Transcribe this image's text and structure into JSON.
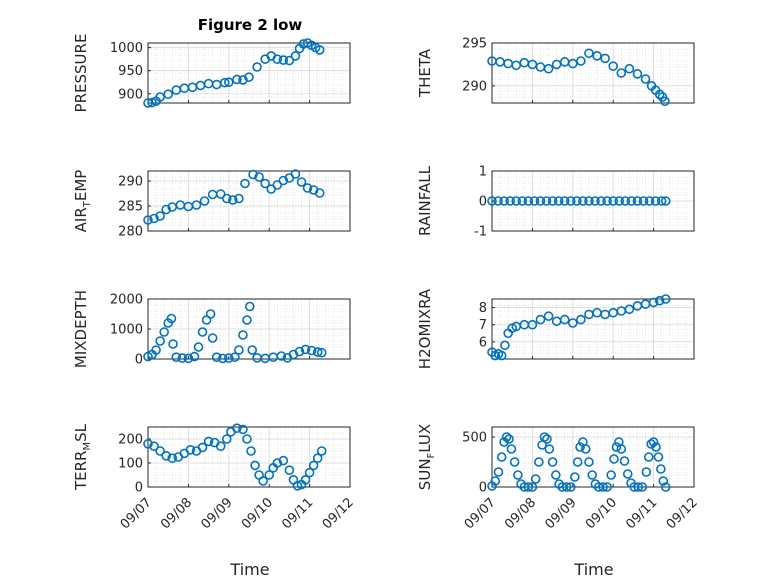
{
  "figure": {
    "title": "Figure 2 low"
  },
  "colors": {
    "series": "#0072bd",
    "axis": "#262626",
    "grid": "#d9d9d9"
  },
  "chart_data": [
    {
      "type": "scatter",
      "ylabel_parts": [
        "PRESSURE"
      ],
      "ylim": [
        880,
        1010
      ],
      "yticks": [
        900,
        950,
        1000
      ],
      "xticks": [
        "09/07",
        "09/08",
        "09/09",
        "09/10",
        "09/11",
        "09/12"
      ],
      "xlim": [
        0,
        5
      ],
      "grid": true,
      "points": [
        [
          0,
          880
        ],
        [
          0.1,
          881
        ],
        [
          0.2,
          884
        ],
        [
          0.3,
          893
        ],
        [
          0.5,
          899
        ],
        [
          0.7,
          908
        ],
        [
          0.9,
          912
        ],
        [
          1.1,
          914
        ],
        [
          1.3,
          918
        ],
        [
          1.5,
          922
        ],
        [
          1.7,
          920
        ],
        [
          1.9,
          924
        ],
        [
          2.0,
          925
        ],
        [
          2.2,
          931
        ],
        [
          2.35,
          930
        ],
        [
          2.5,
          936
        ],
        [
          2.7,
          958
        ],
        [
          2.9,
          975
        ],
        [
          3.05,
          982
        ],
        [
          3.2,
          975
        ],
        [
          3.35,
          973
        ],
        [
          3.5,
          972
        ],
        [
          3.65,
          982
        ],
        [
          3.75,
          998
        ],
        [
          3.85,
          1008
        ],
        [
          3.95,
          1010
        ],
        [
          4.05,
          1005
        ],
        [
          4.15,
          1000
        ],
        [
          4.25,
          995
        ]
      ]
    },
    {
      "type": "scatter",
      "ylabel_parts": [
        "THETA"
      ],
      "ylim": [
        288,
        295
      ],
      "yticks": [
        290,
        295
      ],
      "xticks": [
        "09/07",
        "09/08",
        "09/09",
        "09/10",
        "09/11",
        "09/12"
      ],
      "xlim": [
        0,
        5
      ],
      "grid": true,
      "points": [
        [
          0,
          292.9
        ],
        [
          0.2,
          292.8
        ],
        [
          0.4,
          292.6
        ],
        [
          0.6,
          292.4
        ],
        [
          0.8,
          292.7
        ],
        [
          1.0,
          292.5
        ],
        [
          1.2,
          292.2
        ],
        [
          1.4,
          292.0
        ],
        [
          1.6,
          292.5
        ],
        [
          1.8,
          292.8
        ],
        [
          2.0,
          292.6
        ],
        [
          2.2,
          292.9
        ],
        [
          2.4,
          293.8
        ],
        [
          2.6,
          293.5
        ],
        [
          2.8,
          293.2
        ],
        [
          3.0,
          292.3
        ],
        [
          3.2,
          291.5
        ],
        [
          3.4,
          292.0
        ],
        [
          3.6,
          291.4
        ],
        [
          3.8,
          290.8
        ],
        [
          3.95,
          290.0
        ],
        [
          4.05,
          289.5
        ],
        [
          4.15,
          289.0
        ],
        [
          4.22,
          288.7
        ],
        [
          4.28,
          288.2
        ]
      ]
    },
    {
      "type": "scatter",
      "ylabel_parts": [
        "AIR",
        "T",
        "EMP"
      ],
      "ylim": [
        280,
        292
      ],
      "yticks": [
        280,
        285,
        290
      ],
      "xticks": [
        "09/07",
        "09/08",
        "09/09",
        "09/10",
        "09/11",
        "09/12"
      ],
      "xlim": [
        0,
        5
      ],
      "grid": true,
      "points": [
        [
          0,
          282.2
        ],
        [
          0.15,
          282.5
        ],
        [
          0.3,
          283.0
        ],
        [
          0.45,
          284.3
        ],
        [
          0.6,
          284.8
        ],
        [
          0.8,
          285.2
        ],
        [
          1.0,
          284.9
        ],
        [
          1.2,
          285.2
        ],
        [
          1.4,
          286.0
        ],
        [
          1.6,
          287.3
        ],
        [
          1.8,
          287.4
        ],
        [
          1.95,
          286.5
        ],
        [
          2.1,
          286.2
        ],
        [
          2.25,
          286.5
        ],
        [
          2.4,
          289.5
        ],
        [
          2.6,
          291.3
        ],
        [
          2.75,
          290.8
        ],
        [
          2.9,
          289.5
        ],
        [
          3.05,
          288.4
        ],
        [
          3.2,
          289.2
        ],
        [
          3.35,
          290.1
        ],
        [
          3.5,
          290.6
        ],
        [
          3.65,
          291.4
        ],
        [
          3.8,
          289.8
        ],
        [
          3.95,
          288.6
        ],
        [
          4.1,
          288.2
        ],
        [
          4.25,
          287.6
        ]
      ]
    },
    {
      "type": "scatter",
      "ylabel_parts": [
        "RAINFALL"
      ],
      "ylim": [
        -1,
        1
      ],
      "yticks": [
        -1,
        0,
        1
      ],
      "xticks": [
        "09/07",
        "09/08",
        "09/09",
        "09/10",
        "09/11",
        "09/12"
      ],
      "xlim": [
        0,
        5
      ],
      "grid": true,
      "points": [
        [
          0,
          0
        ],
        [
          0.15,
          0
        ],
        [
          0.3,
          0
        ],
        [
          0.45,
          0
        ],
        [
          0.6,
          0
        ],
        [
          0.75,
          0
        ],
        [
          0.9,
          0
        ],
        [
          1.05,
          0
        ],
        [
          1.2,
          0
        ],
        [
          1.35,
          0
        ],
        [
          1.5,
          0
        ],
        [
          1.65,
          0
        ],
        [
          1.8,
          0
        ],
        [
          1.95,
          0
        ],
        [
          2.1,
          0
        ],
        [
          2.25,
          0
        ],
        [
          2.4,
          0
        ],
        [
          2.55,
          0
        ],
        [
          2.7,
          0
        ],
        [
          2.85,
          0
        ],
        [
          3.0,
          0
        ],
        [
          3.15,
          0
        ],
        [
          3.3,
          0
        ],
        [
          3.45,
          0
        ],
        [
          3.6,
          0
        ],
        [
          3.75,
          0
        ],
        [
          3.9,
          0
        ],
        [
          4.05,
          0
        ],
        [
          4.2,
          0
        ],
        [
          4.3,
          0
        ]
      ]
    },
    {
      "type": "scatter",
      "ylabel_parts": [
        "MIXDEPTH"
      ],
      "ylim": [
        0,
        2000
      ],
      "yticks": [
        0,
        1000,
        2000
      ],
      "xticks": [
        "09/07",
        "09/08",
        "09/09",
        "09/10",
        "09/11",
        "09/12"
      ],
      "xlim": [
        0,
        5
      ],
      "grid": true,
      "points": [
        [
          0,
          80
        ],
        [
          0.1,
          150
        ],
        [
          0.2,
          300
        ],
        [
          0.3,
          600
        ],
        [
          0.4,
          900
        ],
        [
          0.5,
          1200
        ],
        [
          0.58,
          1350
        ],
        [
          0.62,
          500
        ],
        [
          0.7,
          60
        ],
        [
          0.85,
          30
        ],
        [
          1.0,
          20
        ],
        [
          1.15,
          80
        ],
        [
          1.25,
          400
        ],
        [
          1.35,
          900
        ],
        [
          1.45,
          1300
        ],
        [
          1.55,
          1500
        ],
        [
          1.6,
          700
        ],
        [
          1.7,
          60
        ],
        [
          1.85,
          20
        ],
        [
          2.0,
          30
        ],
        [
          2.15,
          60
        ],
        [
          2.25,
          300
        ],
        [
          2.35,
          800
        ],
        [
          2.45,
          1300
        ],
        [
          2.52,
          1750
        ],
        [
          2.58,
          300
        ],
        [
          2.7,
          40
        ],
        [
          2.9,
          20
        ],
        [
          3.1,
          60
        ],
        [
          3.3,
          100
        ],
        [
          3.45,
          40
        ],
        [
          3.6,
          150
        ],
        [
          3.75,
          250
        ],
        [
          3.9,
          320
        ],
        [
          4.05,
          280
        ],
        [
          4.2,
          230
        ],
        [
          4.3,
          210
        ]
      ]
    },
    {
      "type": "scatter",
      "ylabel_parts": [
        "H2OMIXRA"
      ],
      "ylim": [
        5,
        8.5
      ],
      "yticks": [
        6,
        7,
        8
      ],
      "xticks": [
        "09/07",
        "09/08",
        "09/09",
        "09/10",
        "09/11",
        "09/12"
      ],
      "xlim": [
        0,
        5
      ],
      "grid": true,
      "points": [
        [
          0,
          5.4
        ],
        [
          0.08,
          5.2
        ],
        [
          0.16,
          5.3
        ],
        [
          0.24,
          5.2
        ],
        [
          0.32,
          5.8
        ],
        [
          0.4,
          6.5
        ],
        [
          0.5,
          6.8
        ],
        [
          0.6,
          6.9
        ],
        [
          0.8,
          7.0
        ],
        [
          1.0,
          7.0
        ],
        [
          1.2,
          7.3
        ],
        [
          1.4,
          7.5
        ],
        [
          1.6,
          7.2
        ],
        [
          1.8,
          7.3
        ],
        [
          2.0,
          7.1
        ],
        [
          2.2,
          7.3
        ],
        [
          2.4,
          7.6
        ],
        [
          2.6,
          7.7
        ],
        [
          2.8,
          7.6
        ],
        [
          3.0,
          7.7
        ],
        [
          3.2,
          7.8
        ],
        [
          3.4,
          7.9
        ],
        [
          3.6,
          8.1
        ],
        [
          3.8,
          8.2
        ],
        [
          4.0,
          8.3
        ],
        [
          4.15,
          8.4
        ],
        [
          4.3,
          8.5
        ]
      ]
    },
    {
      "type": "scatter",
      "ylabel_parts": [
        "TERR",
        "M",
        "SL"
      ],
      "ylim": [
        0,
        250
      ],
      "yticks": [
        0,
        100,
        200
      ],
      "xticks": [
        "09/07",
        "09/08",
        "09/09",
        "09/10",
        "09/11",
        "09/12"
      ],
      "xlim": [
        0,
        5
      ],
      "grid": true,
      "points": [
        [
          0,
          180
        ],
        [
          0.15,
          170
        ],
        [
          0.3,
          150
        ],
        [
          0.45,
          130
        ],
        [
          0.6,
          120
        ],
        [
          0.75,
          125
        ],
        [
          0.9,
          140
        ],
        [
          1.05,
          155
        ],
        [
          1.2,
          150
        ],
        [
          1.35,
          165
        ],
        [
          1.5,
          190
        ],
        [
          1.65,
          185
        ],
        [
          1.8,
          170
        ],
        [
          1.95,
          200
        ],
        [
          2.05,
          230
        ],
        [
          2.2,
          245
        ],
        [
          2.35,
          240
        ],
        [
          2.45,
          200
        ],
        [
          2.55,
          150
        ],
        [
          2.65,
          90
        ],
        [
          2.75,
          50
        ],
        [
          2.85,
          25
        ],
        [
          3.0,
          50
        ],
        [
          3.1,
          80
        ],
        [
          3.2,
          100
        ],
        [
          3.35,
          110
        ],
        [
          3.5,
          70
        ],
        [
          3.6,
          30
        ],
        [
          3.7,
          5
        ],
        [
          3.8,
          10
        ],
        [
          3.9,
          30
        ],
        [
          4.0,
          60
        ],
        [
          4.1,
          90
        ],
        [
          4.2,
          120
        ],
        [
          4.3,
          150
        ]
      ]
    },
    {
      "type": "scatter",
      "ylabel_parts": [
        "SUN",
        "F",
        "LUX"
      ],
      "ylim": [
        0,
        600
      ],
      "yticks": [
        0,
        500
      ],
      "xticks": [
        "09/07",
        "09/08",
        "09/09",
        "09/10",
        "09/11",
        "09/12"
      ],
      "xlim": [
        0,
        5
      ],
      "grid": true,
      "points": [
        [
          0,
          10
        ],
        [
          0.08,
          60
        ],
        [
          0.16,
          150
        ],
        [
          0.24,
          300
        ],
        [
          0.3,
          450
        ],
        [
          0.36,
          500
        ],
        [
          0.42,
          480
        ],
        [
          0.48,
          380
        ],
        [
          0.56,
          250
        ],
        [
          0.64,
          120
        ],
        [
          0.72,
          30
        ],
        [
          0.8,
          0
        ],
        [
          0.9,
          0
        ],
        [
          1.0,
          0
        ],
        [
          1.08,
          80
        ],
        [
          1.16,
          250
        ],
        [
          1.24,
          420
        ],
        [
          1.3,
          500
        ],
        [
          1.36,
          480
        ],
        [
          1.42,
          380
        ],
        [
          1.5,
          250
        ],
        [
          1.58,
          120
        ],
        [
          1.66,
          30
        ],
        [
          1.74,
          0
        ],
        [
          1.85,
          0
        ],
        [
          1.95,
          0
        ],
        [
          2.05,
          100
        ],
        [
          2.12,
          250
        ],
        [
          2.18,
          400
        ],
        [
          2.25,
          450
        ],
        [
          2.32,
          380
        ],
        [
          2.4,
          250
        ],
        [
          2.48,
          120
        ],
        [
          2.56,
          30
        ],
        [
          2.64,
          0
        ],
        [
          2.75,
          0
        ],
        [
          2.85,
          0
        ],
        [
          2.95,
          120
        ],
        [
          3.02,
          280
        ],
        [
          3.08,
          400
        ],
        [
          3.14,
          450
        ],
        [
          3.2,
          380
        ],
        [
          3.28,
          260
        ],
        [
          3.36,
          130
        ],
        [
          3.44,
          40
        ],
        [
          3.52,
          0
        ],
        [
          3.62,
          0
        ],
        [
          3.72,
          0
        ],
        [
          3.82,
          150
        ],
        [
          3.88,
          300
        ],
        [
          3.94,
          430
        ],
        [
          4.0,
          450
        ],
        [
          4.06,
          400
        ],
        [
          4.12,
          300
        ],
        [
          4.18,
          180
        ],
        [
          4.24,
          60
        ],
        [
          4.3,
          0
        ]
      ]
    }
  ],
  "xaxis": {
    "label": "Time"
  }
}
